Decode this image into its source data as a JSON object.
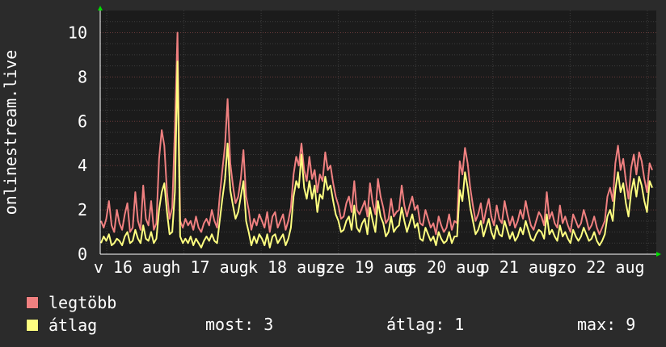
{
  "chart_data": {
    "type": "line",
    "ylabel": "onlinestream.live",
    "ylim": [
      0,
      11
    ],
    "yticks": [
      "0",
      "2",
      "4",
      "6",
      "8",
      "10"
    ],
    "x_tick_labels": [
      "v 16 aug",
      "h 17 aug",
      "k 18 aug",
      "sze 19 aug",
      "cs 20 aug",
      "p 21 aug",
      "szo 22 aug"
    ],
    "grid": true,
    "series": [
      {
        "name": "legtöbb",
        "color": "#f08080",
        "values": [
          1.5,
          1.2,
          1.6,
          2.4,
          1.3,
          1.0,
          2.0,
          1.4,
          1.1,
          1.8,
          2.3,
          1.0,
          1.2,
          2.8,
          1.5,
          1.1,
          3.1,
          1.6,
          1.3,
          2.4,
          1.1,
          1.4,
          4.3,
          5.6,
          4.9,
          2.8,
          1.6,
          2.1,
          5.7,
          10.0,
          1.5,
          1.2,
          1.6,
          1.3,
          1.5,
          1.1,
          1.7,
          1.2,
          1.0,
          1.4,
          1.6,
          1.3,
          2.0,
          1.5,
          1.2,
          2.6,
          3.8,
          4.9,
          7.0,
          4.1,
          3.1,
          2.3,
          2.6,
          3.4,
          4.7,
          2.6,
          2.0,
          1.1,
          1.6,
          1.3,
          1.8,
          1.5,
          1.2,
          1.9,
          1.0,
          1.7,
          1.9,
          1.2,
          1.5,
          1.8,
          1.1,
          1.5,
          2.1,
          3.6,
          4.4,
          4.0,
          5.0,
          3.8,
          3.3,
          4.4,
          3.4,
          3.8,
          2.8,
          3.6,
          3.3,
          4.6,
          3.8,
          4.0,
          3.2,
          2.6,
          2.2,
          1.6,
          1.7,
          2.3,
          2.6,
          1.9,
          3.3,
          2.0,
          1.8,
          2.1,
          2.4,
          1.7,
          3.2,
          2.3,
          1.8,
          3.4,
          2.6,
          2.1,
          1.4,
          1.6,
          2.5,
          1.7,
          1.9,
          2.0,
          3.1,
          2.2,
          1.7,
          2.2,
          2.6,
          2.0,
          2.2,
          1.4,
          1.3,
          2.0,
          1.6,
          1.2,
          1.4,
          0.9,
          1.7,
          1.3,
          1.0,
          1.2,
          1.8,
          1.1,
          1.5,
          1.4,
          4.2,
          3.6,
          4.8,
          4.1,
          3.0,
          2.2,
          1.5,
          1.8,
          2.3,
          1.4,
          2.0,
          2.5,
          1.7,
          1.3,
          2.2,
          1.6,
          1.4,
          2.4,
          1.8,
          1.3,
          1.7,
          1.2,
          1.5,
          2.0,
          1.6,
          2.4,
          1.8,
          1.3,
          1.1,
          1.5,
          1.9,
          1.7,
          1.3,
          2.8,
          1.6,
          1.9,
          1.4,
          1.2,
          2.2,
          1.4,
          1.7,
          1.3,
          1.0,
          1.8,
          1.5,
          1.2,
          1.4,
          2.0,
          1.6,
          1.1,
          1.3,
          1.7,
          1.2,
          0.9,
          1.2,
          1.5,
          2.6,
          3.0,
          2.4,
          4.1,
          4.9,
          3.8,
          4.3,
          3.3,
          2.5,
          3.9,
          4.5,
          3.6,
          4.6,
          4.2,
          3.4,
          2.8,
          4.1,
          3.8
        ]
      },
      {
        "name": "átlag",
        "color": "#ffff80",
        "values": [
          0.5,
          0.8,
          0.6,
          0.9,
          0.4,
          0.5,
          0.7,
          0.6,
          0.4,
          0.8,
          1.0,
          0.5,
          0.6,
          1.1,
          0.7,
          0.5,
          1.3,
          0.7,
          0.6,
          1.0,
          0.5,
          0.7,
          2.0,
          2.8,
          3.2,
          1.9,
          0.9,
          1.0,
          2.8,
          8.7,
          0.8,
          0.5,
          0.7,
          0.5,
          0.8,
          0.4,
          0.7,
          0.5,
          0.3,
          0.6,
          0.8,
          0.6,
          0.9,
          0.6,
          0.5,
          1.5,
          2.5,
          3.4,
          5.0,
          2.9,
          2.2,
          1.6,
          1.9,
          2.6,
          3.3,
          1.5,
          1.0,
          0.4,
          0.8,
          0.5,
          0.9,
          0.7,
          0.4,
          0.9,
          0.3,
          0.8,
          0.9,
          0.5,
          0.7,
          0.9,
          0.4,
          0.7,
          1.2,
          2.6,
          3.3,
          3.0,
          4.5,
          3.0,
          2.5,
          3.3,
          2.5,
          3.1,
          1.9,
          2.7,
          2.5,
          3.5,
          2.9,
          3.1,
          2.4,
          1.8,
          1.5,
          1.0,
          1.1,
          1.5,
          1.7,
          1.1,
          2.2,
          1.2,
          1.0,
          1.4,
          1.6,
          0.9,
          2.1,
          1.5,
          1.0,
          2.4,
          1.7,
          1.4,
          0.8,
          1.0,
          1.7,
          1.0,
          1.2,
          1.3,
          2.1,
          1.5,
          1.0,
          1.4,
          1.8,
          1.2,
          1.4,
          0.7,
          0.6,
          1.2,
          0.9,
          0.6,
          0.8,
          0.4,
          1.0,
          0.7,
          0.5,
          0.6,
          1.0,
          0.5,
          0.8,
          0.8,
          2.9,
          2.4,
          3.7,
          3.0,
          2.1,
          1.5,
          0.9,
          1.1,
          1.5,
          0.8,
          1.2,
          1.6,
          1.0,
          0.7,
          1.3,
          0.9,
          0.8,
          1.5,
          1.1,
          0.7,
          1.0,
          0.6,
          0.8,
          1.2,
          0.9,
          1.5,
          1.1,
          0.7,
          0.6,
          0.9,
          1.1,
          1.0,
          0.7,
          1.8,
          0.9,
          1.1,
          0.8,
          0.6,
          1.3,
          0.8,
          1.0,
          0.7,
          0.5,
          1.1,
          0.8,
          0.6,
          0.8,
          1.2,
          0.9,
          0.6,
          0.7,
          1.0,
          0.6,
          0.4,
          0.6,
          0.9,
          1.7,
          2.0,
          1.5,
          2.9,
          3.7,
          2.8,
          3.2,
          2.3,
          1.7,
          2.8,
          3.4,
          2.6,
          3.5,
          3.1,
          2.4,
          1.9,
          3.3,
          3.0
        ]
      }
    ]
  },
  "legend": {
    "max_label": "legtöbb",
    "avg_label": "átlag",
    "stats": {
      "current": "most: 3",
      "average": "átlag: 1",
      "maximum": "max: 9"
    }
  }
}
